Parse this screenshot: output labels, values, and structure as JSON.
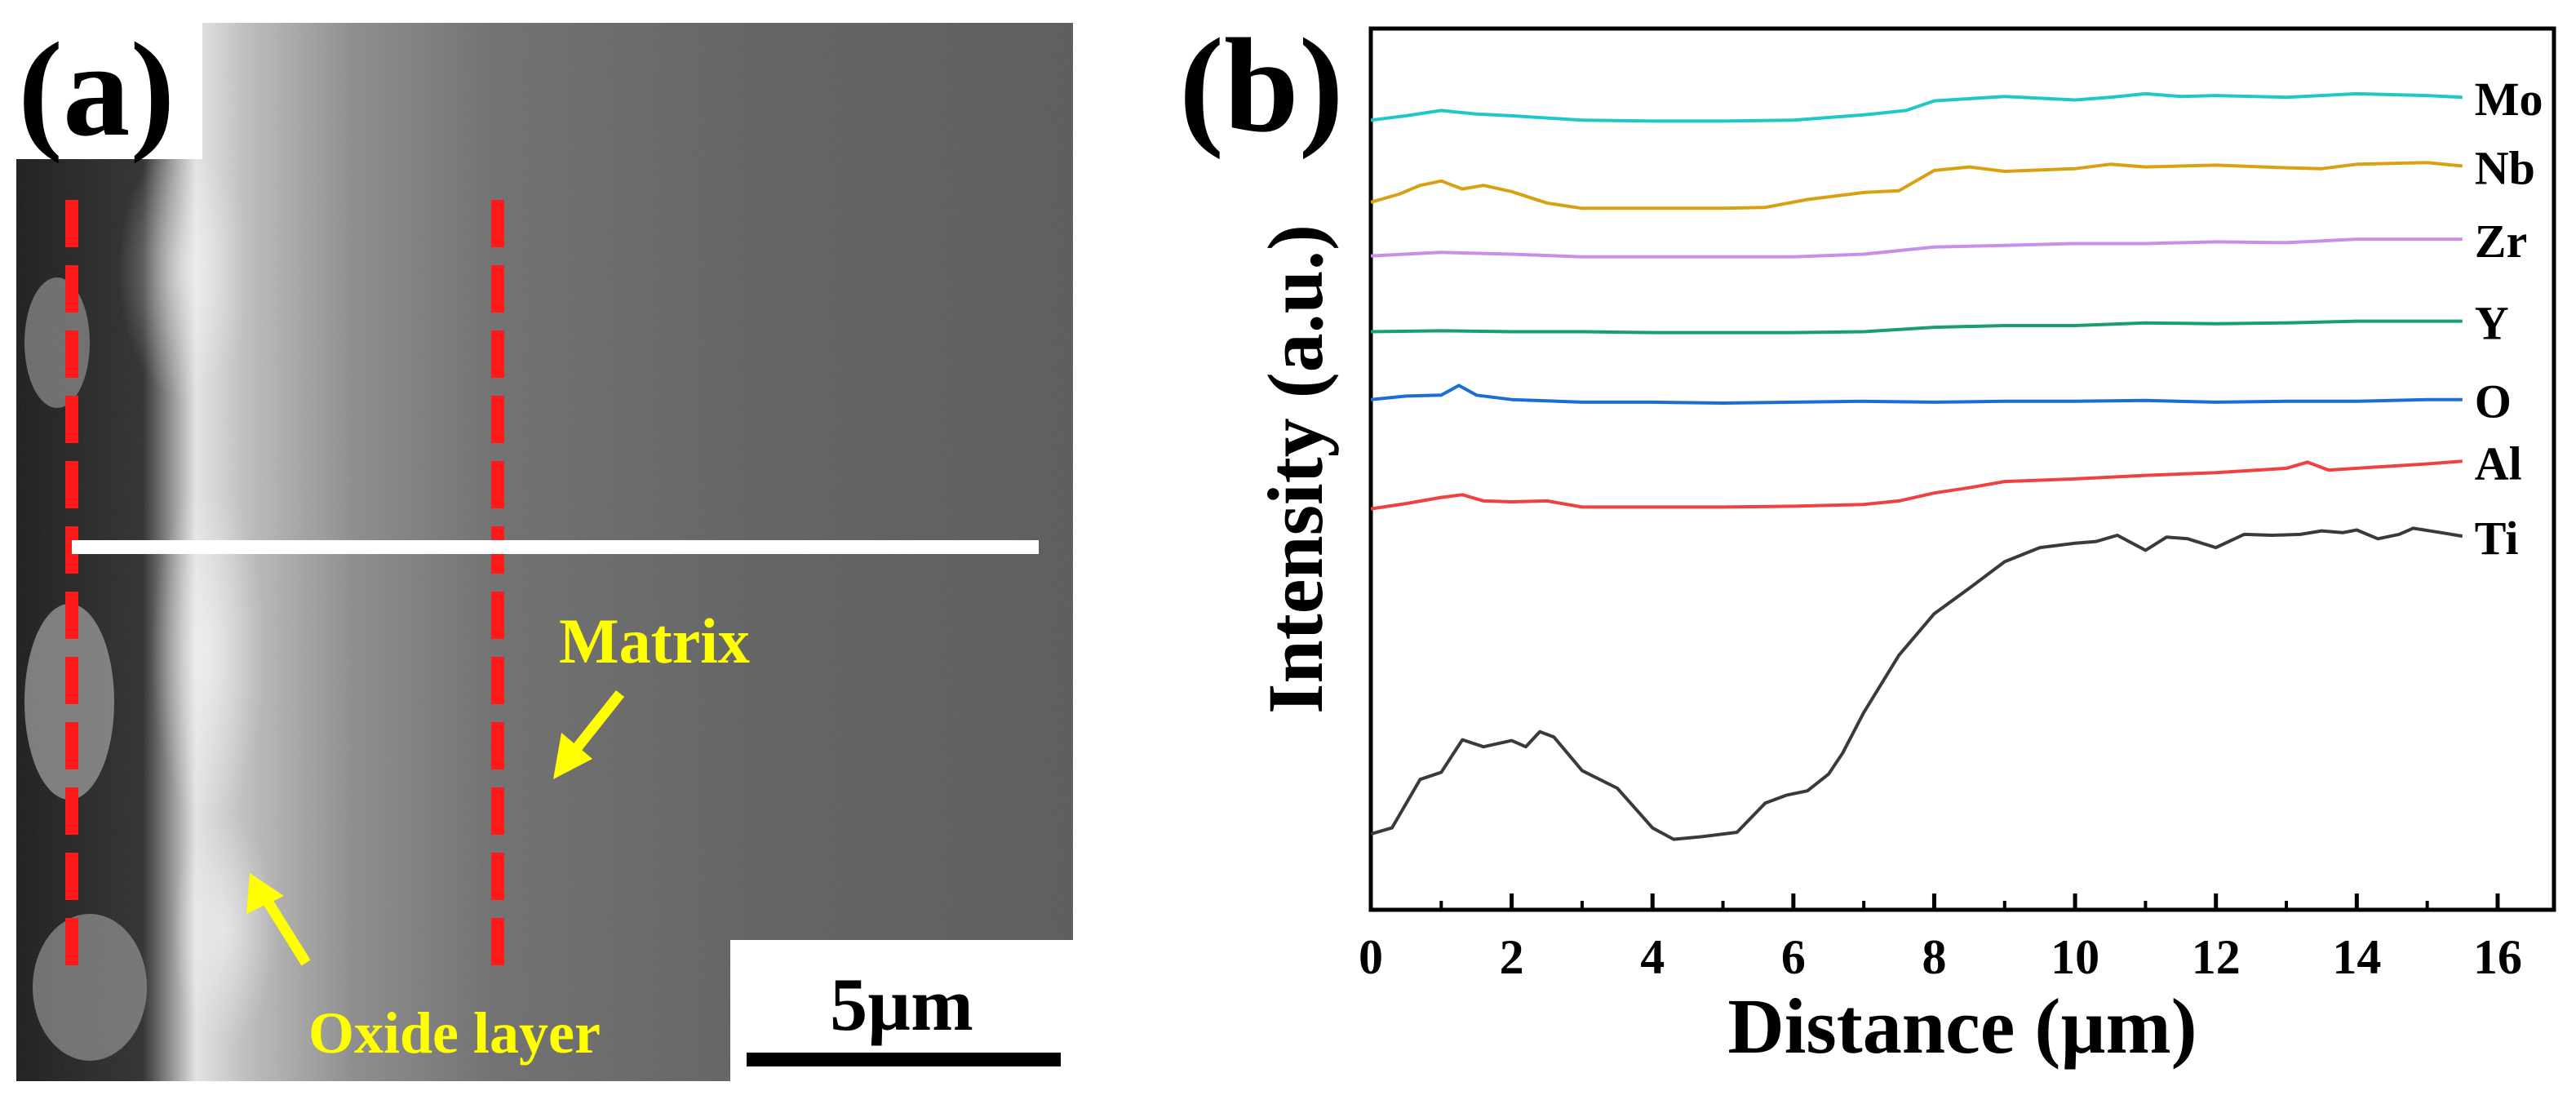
{
  "panel_a": {
    "label": "(a)",
    "annotations": {
      "matrix": "Matrix",
      "oxide_layer": "Oxide layer"
    },
    "scale_bar": "5µm",
    "colors": {
      "boundary_lines": "#ff1a1a",
      "profile_line": "#ffffff",
      "annotation": "#ffff00"
    }
  },
  "chart_data": {
    "type": "line",
    "panel_label": "(b)",
    "title": "",
    "xlabel": "Distance (µm)",
    "ylabel": "Intensity (a.u.)",
    "xlim": [
      0,
      16.8
    ],
    "ylim": [
      0,
      100
    ],
    "xticks": [
      "0",
      "2",
      "4",
      "6",
      "8",
      "10",
      "12",
      "14",
      "16"
    ],
    "grid": false,
    "legend": "series labels at right end of each line",
    "series": [
      {
        "name": "Mo",
        "color": "#1fc8c8",
        "x": [
          0,
          0.5,
          1,
          1.5,
          2,
          3,
          4,
          5,
          6,
          7,
          7.6,
          8,
          9,
          10,
          10.5,
          11,
          11.5,
          12,
          13,
          14,
          15,
          15.5
        ],
        "y": [
          89.6,
          90.1,
          90.7,
          90.3,
          90.1,
          89.6,
          89.5,
          89.5,
          89.6,
          90.2,
          90.7,
          91.8,
          92.3,
          91.9,
          92.2,
          92.6,
          92.3,
          92.4,
          92.2,
          92.6,
          92.4,
          92.2
        ]
      },
      {
        "name": "Nb",
        "color": "#d9a012",
        "x": [
          0,
          0.4,
          0.7,
          1,
          1.3,
          1.6,
          2,
          2.5,
          3,
          4,
          5,
          5.6,
          6.2,
          7,
          7.5,
          8,
          8.5,
          9,
          10,
          10.5,
          11,
          12,
          13,
          13.5,
          14,
          15,
          15.5
        ],
        "y": [
          80.3,
          81.2,
          82.2,
          82.7,
          81.8,
          82.2,
          81.5,
          80.2,
          79.6,
          79.6,
          79.6,
          79.7,
          80.6,
          81.4,
          81.6,
          83.9,
          84.3,
          83.8,
          84.1,
          84.6,
          84.3,
          84.5,
          84.2,
          84.1,
          84.6,
          84.8,
          84.4
        ]
      },
      {
        "name": "Zr",
        "color": "#c98ee6",
        "x": [
          0,
          1,
          2,
          3,
          4,
          5,
          6,
          7,
          8,
          9,
          10,
          11,
          12,
          13,
          14,
          15,
          15.5
        ],
        "y": [
          74.2,
          74.6,
          74.4,
          74.1,
          74.1,
          74.1,
          74.1,
          74.4,
          75.2,
          75.4,
          75.6,
          75.6,
          75.8,
          75.7,
          76.1,
          76.1,
          76.1
        ]
      },
      {
        "name": "Y",
        "color": "#1a9f6a",
        "x": [
          0,
          1,
          2,
          3,
          4,
          5,
          6,
          7,
          8,
          9,
          10,
          11,
          12,
          13,
          14,
          15,
          15.5
        ],
        "y": [
          65.6,
          65.7,
          65.6,
          65.6,
          65.5,
          65.5,
          65.5,
          65.6,
          66.1,
          66.3,
          66.3,
          66.6,
          66.5,
          66.6,
          66.8,
          66.8,
          66.8
        ]
      },
      {
        "name": "O",
        "color": "#1a6fd6",
        "x": [
          0,
          0.5,
          1,
          1.25,
          1.5,
          2,
          3,
          4,
          5,
          6,
          7,
          8,
          9,
          10,
          11,
          12,
          13,
          14,
          15,
          15.5
        ],
        "y": [
          57.9,
          58.3,
          58.4,
          59.5,
          58.4,
          57.9,
          57.6,
          57.6,
          57.5,
          57.6,
          57.7,
          57.6,
          57.7,
          57.7,
          57.8,
          57.6,
          57.7,
          57.7,
          57.9,
          57.9
        ]
      },
      {
        "name": "Al",
        "color": "#f04040",
        "x": [
          0,
          0.5,
          1,
          1.3,
          1.6,
          2,
          2.5,
          3,
          4,
          5,
          6,
          7,
          7.5,
          8,
          8.5,
          9,
          10,
          11,
          12,
          13,
          13.3,
          13.6,
          14,
          15,
          15.5
        ],
        "y": [
          45.5,
          46.1,
          46.8,
          47.1,
          46.4,
          46.3,
          46.4,
          45.7,
          45.7,
          45.7,
          45.8,
          46.0,
          46.4,
          47.3,
          47.9,
          48.6,
          48.9,
          49.3,
          49.6,
          50.1,
          50.8,
          49.9,
          50.1,
          50.6,
          50.9
        ]
      },
      {
        "name": "Ti",
        "color": "#3a3a3a",
        "x": [
          0,
          0.3,
          0.7,
          1,
          1.3,
          1.6,
          2,
          2.2,
          2.4,
          2.6,
          3,
          3.5,
          4,
          4.3,
          4.7,
          5.2,
          5.6,
          5.9,
          6.2,
          6.5,
          6.7,
          7,
          7.5,
          8,
          8.5,
          9,
          9.5,
          10,
          10.3,
          10.6,
          11,
          11.3,
          11.6,
          12,
          12.4,
          12.8,
          13.2,
          13.5,
          13.8,
          14,
          14.3,
          14.6,
          14.8,
          15.2,
          15.5
        ],
        "y": [
          8.6,
          9.3,
          14.8,
          15.6,
          19.3,
          18.5,
          19.2,
          18.5,
          20.2,
          19.6,
          15.8,
          13.8,
          9.3,
          8.0,
          8.3,
          8.8,
          12.1,
          13.0,
          13.5,
          15.4,
          17.8,
          22.4,
          28.9,
          33.6,
          36.5,
          39.5,
          41.1,
          41.6,
          41.8,
          42.5,
          40.8,
          42.3,
          42.1,
          41.1,
          42.6,
          42.5,
          42.6,
          43.0,
          42.8,
          43.1,
          42.1,
          42.6,
          43.3,
          42.8,
          42.4
        ]
      }
    ]
  }
}
